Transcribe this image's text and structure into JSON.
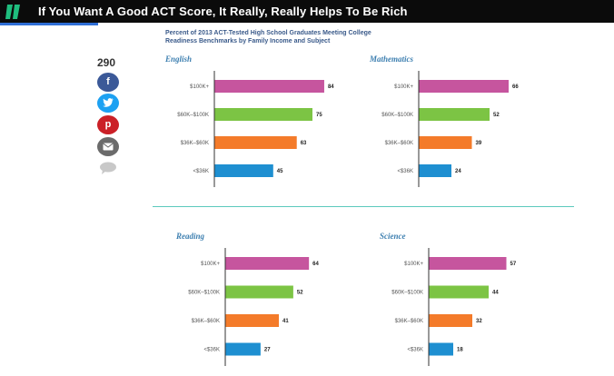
{
  "header": {
    "title": "If You Want A Good ACT Score, It Really, Really Helps To Be Rich",
    "brand_color": "#0b0b0b",
    "logo_color": "#1fbd7e"
  },
  "share": {
    "count": "290",
    "facebook_icon": "f",
    "twitter_icon": "twitter-bird",
    "pinterest_icon": "p",
    "email_icon": "envelope"
  },
  "figure": {
    "title_line1": "Percent of 2013 ACT-Tested High School Graduates Meeting College",
    "title_line2": "Readiness Benchmarks by Family Income and Subject"
  },
  "chart_data": [
    {
      "type": "bar",
      "title": "English",
      "categories": [
        "$100K+",
        "$60K–$100K",
        "$36K–$60K",
        "<$36K"
      ],
      "values": [
        84,
        75,
        63,
        45
      ],
      "colors": [
        "#c6559e",
        "#7cc444",
        "#f47b2a",
        "#1e8fd1"
      ],
      "xlim": [
        0,
        100
      ]
    },
    {
      "type": "bar",
      "title": "Mathematics",
      "categories": [
        "$100K+",
        "$60K–$100K",
        "$36K–$60K",
        "<$36K"
      ],
      "values": [
        66,
        52,
        39,
        24
      ],
      "colors": [
        "#c6559e",
        "#7cc444",
        "#f47b2a",
        "#1e8fd1"
      ],
      "xlim": [
        0,
        100
      ]
    },
    {
      "type": "bar",
      "title": "Reading",
      "categories": [
        "$100K+",
        "$60K–$100K",
        "$36K–$60K",
        "<$36K"
      ],
      "values": [
        64,
        52,
        41,
        27
      ],
      "colors": [
        "#c6559e",
        "#7cc444",
        "#f47b2a",
        "#1e8fd1"
      ],
      "xlim": [
        0,
        100
      ]
    },
    {
      "type": "bar",
      "title": "Science",
      "categories": [
        "$100K+",
        "$60K–$100K",
        "$36K–$60K",
        "<$36K"
      ],
      "values": [
        57,
        44,
        32,
        18
      ],
      "colors": [
        "#c6559e",
        "#7cc444",
        "#f47b2a",
        "#1e8fd1"
      ],
      "xlim": [
        0,
        100
      ]
    }
  ]
}
